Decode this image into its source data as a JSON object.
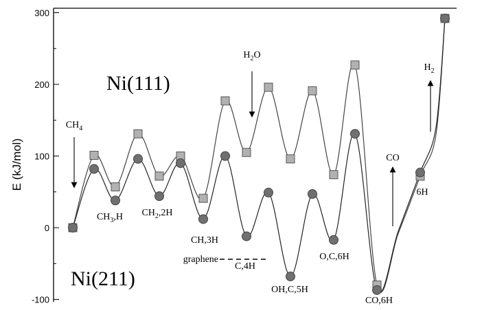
{
  "chart_data": {
    "type": "line",
    "title": "",
    "ylabel": "E (kJ/mol)",
    "xlabel": "",
    "ylim": [
      -110,
      305
    ],
    "yticks": [
      -100,
      0,
      100,
      200,
      300
    ],
    "x": [
      0,
      1,
      2,
      3,
      4,
      5,
      6,
      7,
      8,
      9,
      10,
      11,
      12,
      13,
      14,
      15,
      16,
      17,
      18
    ],
    "series": [
      {
        "name": "Ni(111)",
        "marker": "square",
        "values": [
          0,
          101,
          57,
          131,
          72,
          100,
          41,
          177,
          105,
          196,
          96,
          191,
          74,
          227,
          -80,
          null,
          72,
          null,
          292
        ]
      },
      {
        "name": "Ni(211)",
        "marker": "circle",
        "values": [
          0,
          82,
          38,
          96,
          44,
          90,
          12,
          100,
          -12,
          49,
          -68,
          47,
          -17,
          131,
          -87,
          null,
          77,
          null,
          292
        ]
      }
    ],
    "annotations": [
      {
        "text": "CH4",
        "parts": [
          {
            "t": "CH"
          },
          {
            "t": "4",
            "sub": true
          }
        ],
        "arrow": "down"
      },
      {
        "text": "CH3,H",
        "parts": [
          {
            "t": "CH"
          },
          {
            "t": "3",
            "sub": true
          },
          {
            "t": ",H"
          }
        ]
      },
      {
        "text": "CH2,2H",
        "parts": [
          {
            "t": "CH"
          },
          {
            "t": "2",
            "sub": true
          },
          {
            "t": ",2H"
          }
        ]
      },
      {
        "text": "CH,3H",
        "parts": [
          {
            "t": "CH,3H"
          }
        ]
      },
      {
        "text": "C,4H",
        "parts": [
          {
            "t": "C,4H"
          }
        ]
      },
      {
        "text": "graphene",
        "parts": [
          {
            "t": "graphene"
          }
        ]
      },
      {
        "text": "H2O",
        "parts": [
          {
            "t": "H"
          },
          {
            "t": "2",
            "sub": true
          },
          {
            "t": "O"
          }
        ],
        "arrow": "down"
      },
      {
        "text": "OH,C,5H",
        "parts": [
          {
            "t": "OH,C,5H"
          }
        ]
      },
      {
        "text": "O,C,6H",
        "parts": [
          {
            "t": "O,C,6H"
          }
        ]
      },
      {
        "text": "CO,6H",
        "parts": [
          {
            "t": "CO,6H"
          }
        ]
      },
      {
        "text": "CO",
        "parts": [
          {
            "t": "CO"
          }
        ],
        "arrow": "up"
      },
      {
        "text": "6H",
        "parts": [
          {
            "t": "6H"
          }
        ]
      },
      {
        "text": "H2",
        "parts": [
          {
            "t": "H"
          },
          {
            "t": "2",
            "sub": true
          }
        ],
        "arrow": "up"
      }
    ],
    "surface_labels": [
      "Ni(111)",
      "Ni(211)"
    ],
    "legend": "none",
    "grid": false
  }
}
